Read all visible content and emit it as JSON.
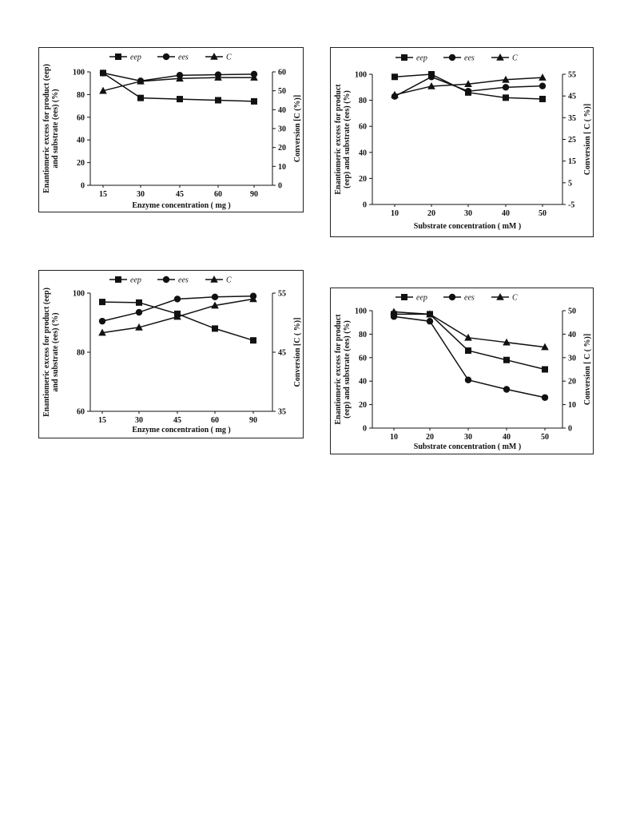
{
  "chart_data": [
    {
      "type": "line",
      "x": [
        "15",
        "30",
        "45",
        "60",
        "90"
      ],
      "xlabel": "Enzyme concentration ( mg )",
      "ylabel_left": [
        "Enantiomeric excess for product (eep)",
        "and substrate (ees) (%)"
      ],
      "ylabel_right": "Conversion [C (%)]",
      "ylim_left": [
        0,
        100
      ],
      "yticks_left": [
        0,
        20,
        40,
        60,
        80,
        100
      ],
      "ylim_right": [
        0,
        60
      ],
      "yticks_right": [
        0,
        10,
        20,
        30,
        40,
        50,
        60
      ],
      "legend": [
        "eep",
        "ees",
        "C"
      ],
      "legend_position": "top",
      "series": [
        {
          "name": "eep",
          "marker": "square",
          "axis": "left",
          "values": [
            99,
            77,
            76,
            75,
            74
          ]
        },
        {
          "name": "ees",
          "marker": "circle",
          "axis": "left",
          "values": [
            99,
            92,
            97,
            97.5,
            98
          ]
        },
        {
          "name": "C",
          "marker": "triangle",
          "axis": "right",
          "values": [
            50,
            55,
            56.5,
            57,
            57
          ]
        }
      ]
    },
    {
      "type": "line",
      "x": [
        "10",
        "20",
        "30",
        "40",
        "50"
      ],
      "xlabel": "Substrate  concentration ( mM )",
      "ylabel_left": [
        "Enantiomeric excess for product",
        "(eep) and substrate (ees) (%)"
      ],
      "ylabel_right": "Conversion [ C ( %)]",
      "ylim_left": [
        0,
        100
      ],
      "yticks_left": [
        0,
        20,
        40,
        60,
        80,
        100
      ],
      "ylim_right": [
        -5,
        55
      ],
      "yticks_right": [
        -5,
        5,
        15,
        25,
        35,
        45,
        55
      ],
      "legend": [
        "eep",
        "ees",
        "C"
      ],
      "legend_position": "top",
      "series": [
        {
          "name": "eep",
          "marker": "square",
          "axis": "left",
          "values": [
            98,
            100,
            86,
            82,
            81
          ]
        },
        {
          "name": "ees",
          "marker": "circle",
          "axis": "left",
          "values": [
            83,
            98,
            87,
            90,
            91
          ]
        },
        {
          "name": "C",
          "marker": "triangle",
          "axis": "right",
          "values": [
            45.5,
            49.5,
            50.5,
            52.5,
            53.5
          ]
        }
      ]
    },
    {
      "type": "line",
      "x": [
        "15",
        "30",
        "45",
        "60",
        "90"
      ],
      "xlabel": "Enzyme concentration ( mg )",
      "ylabel_left": [
        "Enantiomeric excess for product (eep)",
        "and substrate (ees) (%)"
      ],
      "ylabel_right": "Conversion [C ( %)]",
      "ylim_left": [
        60,
        100
      ],
      "yticks_left": [
        60,
        80,
        100
      ],
      "ylim_right": [
        35,
        55
      ],
      "yticks_right": [
        35,
        45,
        55
      ],
      "legend": [
        "eep",
        "ees",
        "C"
      ],
      "legend_position": "top",
      "series": [
        {
          "name": "eep",
          "marker": "square",
          "axis": "left",
          "values": [
            97,
            96.8,
            93,
            88,
            84
          ]
        },
        {
          "name": "ees",
          "marker": "circle",
          "axis": "left",
          "values": [
            90.5,
            93.5,
            98,
            98.7,
            99
          ]
        },
        {
          "name": "C",
          "marker": "triangle",
          "axis": "right",
          "values": [
            48.3,
            49.2,
            51,
            52.9,
            54
          ]
        }
      ]
    },
    {
      "type": "line",
      "x": [
        "10",
        "20",
        "30",
        "40",
        "50"
      ],
      "xlabel": "Substrate  concentration ( mM )",
      "ylabel_left": [
        "Enantiomeric excess for product",
        "(eep) and substrate (ees) (%)"
      ],
      "ylabel_right": "Conversion [ C ( %)]",
      "ylim_left": [
        0,
        100
      ],
      "yticks_left": [
        0,
        20,
        40,
        60,
        80,
        100
      ],
      "ylim_right": [
        0,
        50
      ],
      "yticks_right": [
        0,
        10,
        20,
        30,
        40,
        50
      ],
      "legend": [
        "eep",
        "ees",
        "C"
      ],
      "legend_position": "top",
      "series": [
        {
          "name": "eep",
          "marker": "square",
          "axis": "left",
          "values": [
            97,
            97,
            66,
            58,
            50
          ]
        },
        {
          "name": "ees",
          "marker": "circle",
          "axis": "left",
          "values": [
            95,
            91,
            41,
            33,
            26
          ]
        },
        {
          "name": "C",
          "marker": "triangle",
          "axis": "right",
          "values": [
            49.5,
            48.5,
            38.5,
            36.5,
            34.5
          ]
        }
      ]
    }
  ]
}
